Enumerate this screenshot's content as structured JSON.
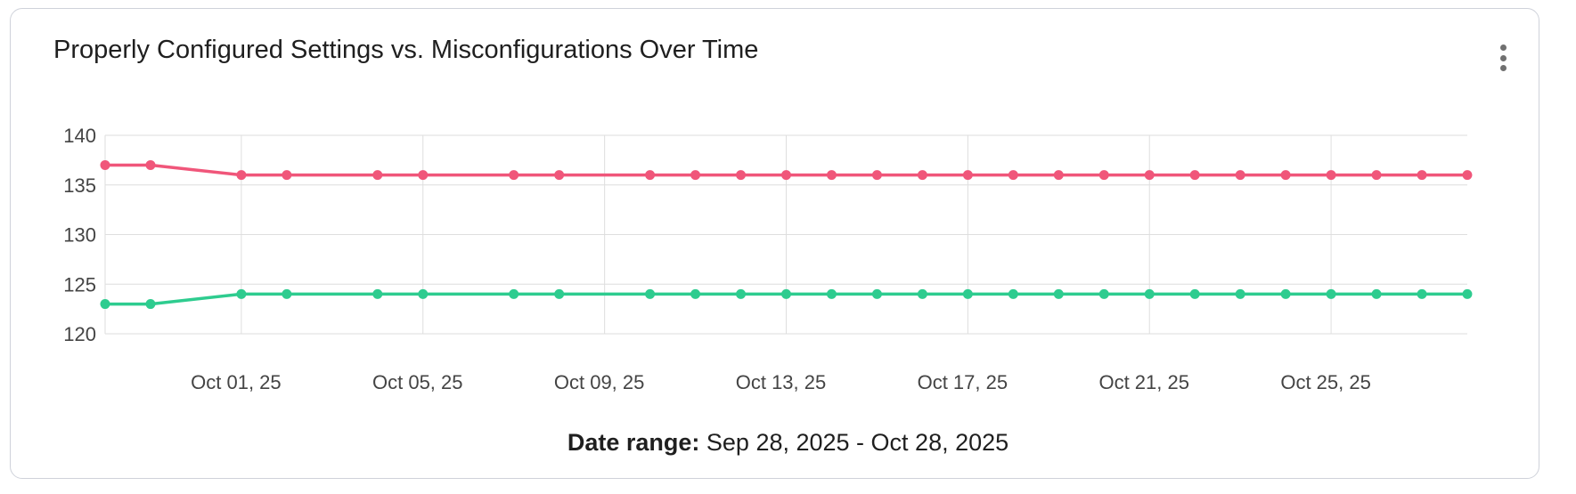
{
  "card": {
    "title": "Properly Configured Settings vs. Misconfigurations Over Time",
    "menu_icon": "more-vertical-icon"
  },
  "footer": {
    "label": "Date range:",
    "value": "Sep 28, 2025 - Oct 28, 2025"
  },
  "chart_data": {
    "type": "line",
    "title": "Properly Configured Settings vs. Misconfigurations Over Time",
    "x": [
      "2025-09-28",
      "2025-09-29",
      "2025-09-30",
      "2025-10-01",
      "2025-10-02",
      "2025-10-03",
      "2025-10-04",
      "2025-10-05",
      "2025-10-06",
      "2025-10-07",
      "2025-10-08",
      "2025-10-09",
      "2025-10-10",
      "2025-10-11",
      "2025-10-12",
      "2025-10-13",
      "2025-10-14",
      "2025-10-15",
      "2025-10-16",
      "2025-10-17",
      "2025-10-18",
      "2025-10-19",
      "2025-10-20",
      "2025-10-21",
      "2025-10-22",
      "2025-10-23",
      "2025-10-24",
      "2025-10-25",
      "2025-10-26",
      "2025-10-27",
      "2025-10-28"
    ],
    "xlim": [
      "2025-09-28",
      "2025-10-28"
    ],
    "x_ticks": [
      "2025-10-01",
      "2025-10-05",
      "2025-10-09",
      "2025-10-13",
      "2025-10-17",
      "2025-10-21",
      "2025-10-25"
    ],
    "x_tick_labels": [
      "Oct 01, 25",
      "Oct 05, 25",
      "Oct 09, 25",
      "Oct 13, 25",
      "Oct 17, 25",
      "Oct 21, 25",
      "Oct 25, 25"
    ],
    "ylim": [
      120,
      140
    ],
    "y_ticks": [
      120,
      125,
      130,
      135,
      140
    ],
    "y_tick_labels": [
      "120",
      "125",
      "130",
      "135",
      "140"
    ],
    "grid": true,
    "series": [
      {
        "color": "#f0567a",
        "points": [
          {
            "x": "2025-09-28",
            "y": 137
          },
          {
            "x": "2025-09-29",
            "y": 137
          },
          {
            "x": "2025-10-01",
            "y": 136
          },
          {
            "x": "2025-10-02",
            "y": 136
          },
          {
            "x": "2025-10-04",
            "y": 136
          },
          {
            "x": "2025-10-05",
            "y": 136
          },
          {
            "x": "2025-10-07",
            "y": 136
          },
          {
            "x": "2025-10-08",
            "y": 136
          },
          {
            "x": "2025-10-10",
            "y": 136
          },
          {
            "x": "2025-10-11",
            "y": 136
          },
          {
            "x": "2025-10-12",
            "y": 136
          },
          {
            "x": "2025-10-13",
            "y": 136
          },
          {
            "x": "2025-10-14",
            "y": 136
          },
          {
            "x": "2025-10-15",
            "y": 136
          },
          {
            "x": "2025-10-16",
            "y": 136
          },
          {
            "x": "2025-10-17",
            "y": 136
          },
          {
            "x": "2025-10-18",
            "y": 136
          },
          {
            "x": "2025-10-19",
            "y": 136
          },
          {
            "x": "2025-10-20",
            "y": 136
          },
          {
            "x": "2025-10-21",
            "y": 136
          },
          {
            "x": "2025-10-22",
            "y": 136
          },
          {
            "x": "2025-10-23",
            "y": 136
          },
          {
            "x": "2025-10-24",
            "y": 136
          },
          {
            "x": "2025-10-25",
            "y": 136
          },
          {
            "x": "2025-10-26",
            "y": 136
          },
          {
            "x": "2025-10-27",
            "y": 136
          },
          {
            "x": "2025-10-28",
            "y": 136
          }
        ]
      },
      {
        "color": "#2ecc8f",
        "points": [
          {
            "x": "2025-09-28",
            "y": 123
          },
          {
            "x": "2025-09-29",
            "y": 123
          },
          {
            "x": "2025-10-01",
            "y": 124
          },
          {
            "x": "2025-10-02",
            "y": 124
          },
          {
            "x": "2025-10-04",
            "y": 124
          },
          {
            "x": "2025-10-05",
            "y": 124
          },
          {
            "x": "2025-10-07",
            "y": 124
          },
          {
            "x": "2025-10-08",
            "y": 124
          },
          {
            "x": "2025-10-10",
            "y": 124
          },
          {
            "x": "2025-10-11",
            "y": 124
          },
          {
            "x": "2025-10-12",
            "y": 124
          },
          {
            "x": "2025-10-13",
            "y": 124
          },
          {
            "x": "2025-10-14",
            "y": 124
          },
          {
            "x": "2025-10-15",
            "y": 124
          },
          {
            "x": "2025-10-16",
            "y": 124
          },
          {
            "x": "2025-10-17",
            "y": 124
          },
          {
            "x": "2025-10-18",
            "y": 124
          },
          {
            "x": "2025-10-19",
            "y": 124
          },
          {
            "x": "2025-10-20",
            "y": 124
          },
          {
            "x": "2025-10-21",
            "y": 124
          },
          {
            "x": "2025-10-22",
            "y": 124
          },
          {
            "x": "2025-10-23",
            "y": 124
          },
          {
            "x": "2025-10-24",
            "y": 124
          },
          {
            "x": "2025-10-25",
            "y": 124
          },
          {
            "x": "2025-10-26",
            "y": 124
          },
          {
            "x": "2025-10-27",
            "y": 124
          },
          {
            "x": "2025-10-28",
            "y": 124
          }
        ]
      }
    ]
  }
}
